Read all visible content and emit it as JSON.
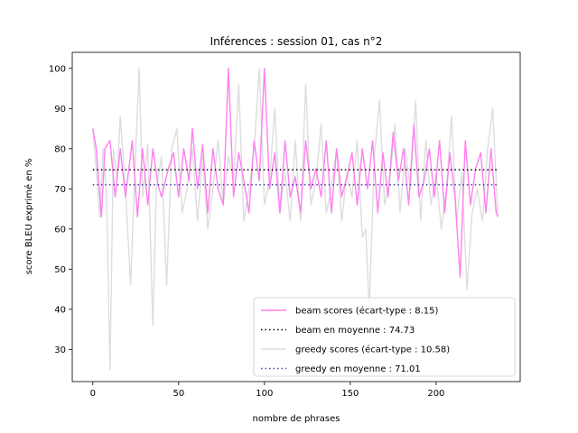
{
  "chart_data": {
    "type": "line",
    "title": "Inférences : session 01, cas n°2",
    "xlabel": "nombre de phrases",
    "ylabel": "score BLEU exprimé en %",
    "xlim": [
      -12,
      249
    ],
    "ylim": [
      22,
      104
    ],
    "xticks": [
      0,
      50,
      100,
      150,
      200
    ],
    "yticks": [
      30,
      40,
      50,
      60,
      70,
      80,
      90,
      100
    ],
    "grid": false,
    "legend_position": "lower right",
    "series": [
      {
        "name": "beam scores (écart-type : 8.15)",
        "color": "#ff80f0",
        "style": "solid",
        "x": [
          0,
          2,
          5,
          7,
          10,
          13,
          16,
          19,
          23,
          26,
          29,
          32,
          35,
          38,
          40,
          44,
          47,
          50,
          53,
          56,
          58,
          61,
          64,
          67,
          70,
          73,
          76,
          79,
          82,
          85,
          88,
          91,
          94,
          97,
          100,
          103,
          106,
          109,
          112,
          115,
          118,
          121,
          124,
          127,
          130,
          133,
          136,
          139,
          142,
          145,
          148,
          151,
          154,
          157,
          160,
          163,
          166,
          169,
          172,
          175,
          178,
          181,
          184,
          187,
          190,
          193,
          196,
          199,
          202,
          205,
          208,
          211,
          214,
          217,
          220,
          223,
          226,
          229,
          232,
          235,
          236
        ],
        "values": [
          85,
          80,
          63,
          80,
          82,
          68,
          80,
          68,
          82,
          63,
          80,
          66,
          80,
          71,
          68,
          75,
          79,
          68,
          80,
          72,
          85,
          70,
          81,
          64,
          80,
          70,
          66,
          100,
          68,
          79,
          72,
          64,
          82,
          72,
          100,
          70,
          79,
          64,
          82,
          68,
          73,
          64,
          82,
          70,
          75,
          68,
          82,
          64,
          80,
          68,
          73,
          79,
          66,
          80,
          70,
          82,
          64,
          79,
          68,
          84,
          72,
          80,
          66,
          86,
          68,
          72,
          80,
          68,
          82,
          64,
          79,
          68,
          48,
          82,
          66,
          75,
          79,
          64,
          80,
          64,
          63
        ]
      },
      {
        "name": "beam en moyenne : 74.73",
        "color": "#000000",
        "style": "dotted",
        "x": [
          0,
          236
        ],
        "values": [
          74.73,
          74.73
        ]
      },
      {
        "name": "greedy scores (écart-type : 10.58)",
        "color": "#dddddd",
        "style": "solid",
        "x": [
          0,
          2,
          4,
          6,
          8,
          10,
          12,
          14,
          16,
          19,
          22,
          25,
          27,
          29,
          32,
          35,
          37,
          40,
          43,
          46,
          49,
          52,
          55,
          58,
          61,
          64,
          67,
          70,
          73,
          76,
          79,
          82,
          85,
          88,
          91,
          94,
          97,
          100,
          103,
          106,
          109,
          112,
          115,
          118,
          121,
          124,
          127,
          130,
          133,
          136,
          139,
          142,
          145,
          148,
          151,
          154,
          157,
          159,
          161,
          164,
          167,
          170,
          173,
          176,
          179,
          182,
          185,
          188,
          191,
          194,
          197,
          200,
          203,
          206,
          209,
          212,
          215,
          218,
          221,
          224,
          227,
          230,
          233,
          236
        ],
        "values": [
          85,
          75,
          63,
          80,
          68,
          25,
          80,
          72,
          88,
          70,
          46,
          80,
          100,
          68,
          81,
          36,
          70,
          78,
          46,
          80,
          85,
          64,
          70,
          80,
          62,
          78,
          60,
          70,
          82,
          66,
          78,
          72,
          96,
          62,
          70,
          80,
          100,
          66,
          72,
          90,
          64,
          74,
          62,
          82,
          62,
          96,
          66,
          72,
          86,
          64,
          70,
          80,
          62,
          74,
          68,
          82,
          58,
          60,
          40,
          78,
          92,
          66,
          72,
          86,
          64,
          80,
          70,
          92,
          62,
          82,
          66,
          74,
          60,
          70,
          88,
          62,
          74,
          45,
          64,
          70,
          62,
          80,
          90,
          63
        ]
      },
      {
        "name": "greedy en moyenne : 71.01",
        "color": "#4b3fa6",
        "style": "dotted",
        "x": [
          0,
          236
        ],
        "values": [
          71.01,
          71.01
        ]
      }
    ]
  }
}
